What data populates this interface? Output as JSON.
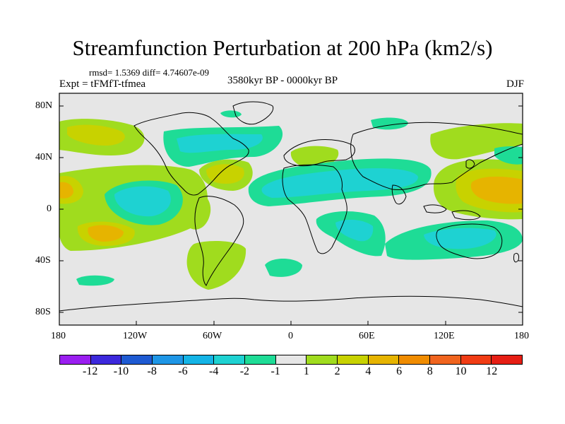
{
  "title": "Streamfunction Perturbation at 200 hPa (km2/s)",
  "stats": "rmsd= 1.5369 diff= 4.74607e-09",
  "experiment": "Expt = tFMfT-tfmea",
  "period": "3580kyr BP - 0000kyr BP",
  "season": "DJF",
  "y_ticks": [
    "80N",
    "40N",
    "0",
    "40S",
    "80S"
  ],
  "x_ticks": [
    "180",
    "120W",
    "60W",
    "0",
    "60E",
    "120E",
    "180"
  ],
  "colorbar": {
    "labels": [
      "-12",
      "-10",
      "-8",
      "-6",
      "-4",
      "-2",
      "-1",
      "1",
      "2",
      "4",
      "6",
      "8",
      "10",
      "12"
    ],
    "colors": [
      "#9a1ef0",
      "#3c28dc",
      "#1e5ad2",
      "#1e96e6",
      "#14b4e6",
      "#1ed2d2",
      "#1edc96",
      "#e6e6e6",
      "#a0dc1e",
      "#c8d200",
      "#e6b400",
      "#f08c00",
      "#f0641e",
      "#f03c14",
      "#e61e14"
    ]
  }
}
